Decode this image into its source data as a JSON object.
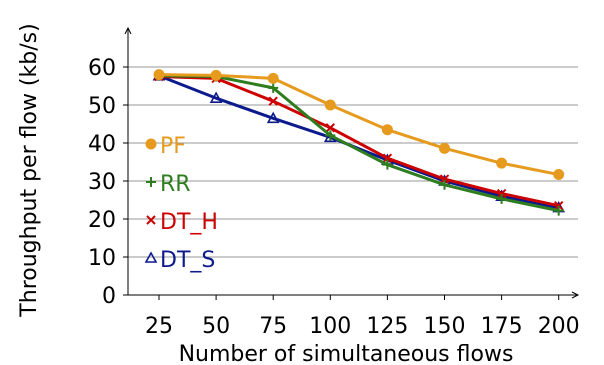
{
  "chart_data": {
    "type": "line",
    "title": "",
    "xlabel": "Number of simultaneous flows",
    "ylabel": "Throughput per flow (kb/s)",
    "x": [
      25,
      50,
      75,
      100,
      125,
      150,
      175,
      200
    ],
    "x_tick_labels": [
      "25",
      "50",
      "75",
      "100",
      "125",
      "150",
      "175",
      "200"
    ],
    "y_ticks": [
      0,
      10,
      20,
      30,
      40,
      50,
      60
    ],
    "y_tick_labels": [
      "0",
      "10",
      "20",
      "30",
      "40",
      "50",
      "60"
    ],
    "ylim": [
      0,
      68
    ],
    "grid": "horizontal",
    "legend_position": "left",
    "series": [
      {
        "name": "PF",
        "color": "#e69b1e",
        "marker": "circle",
        "values": [
          58.0,
          57.8,
          57.0,
          50.0,
          43.5,
          38.6,
          34.7,
          31.7
        ]
      },
      {
        "name": "RR",
        "color": "#2e7d1f",
        "marker": "plus",
        "values": [
          57.7,
          57.5,
          54.5,
          42.0,
          34.3,
          29.0,
          25.3,
          22.2
        ]
      },
      {
        "name": "DT_H",
        "color": "#cc0000",
        "marker": "cross",
        "values": [
          57.5,
          57.0,
          51.0,
          44.0,
          36.0,
          30.5,
          26.7,
          23.5
        ]
      },
      {
        "name": "DT_S",
        "color": "#0c1a8c",
        "marker": "triangle",
        "values": [
          57.7,
          51.8,
          46.5,
          41.5,
          35.5,
          30.0,
          26.0,
          23.0
        ]
      }
    ]
  }
}
